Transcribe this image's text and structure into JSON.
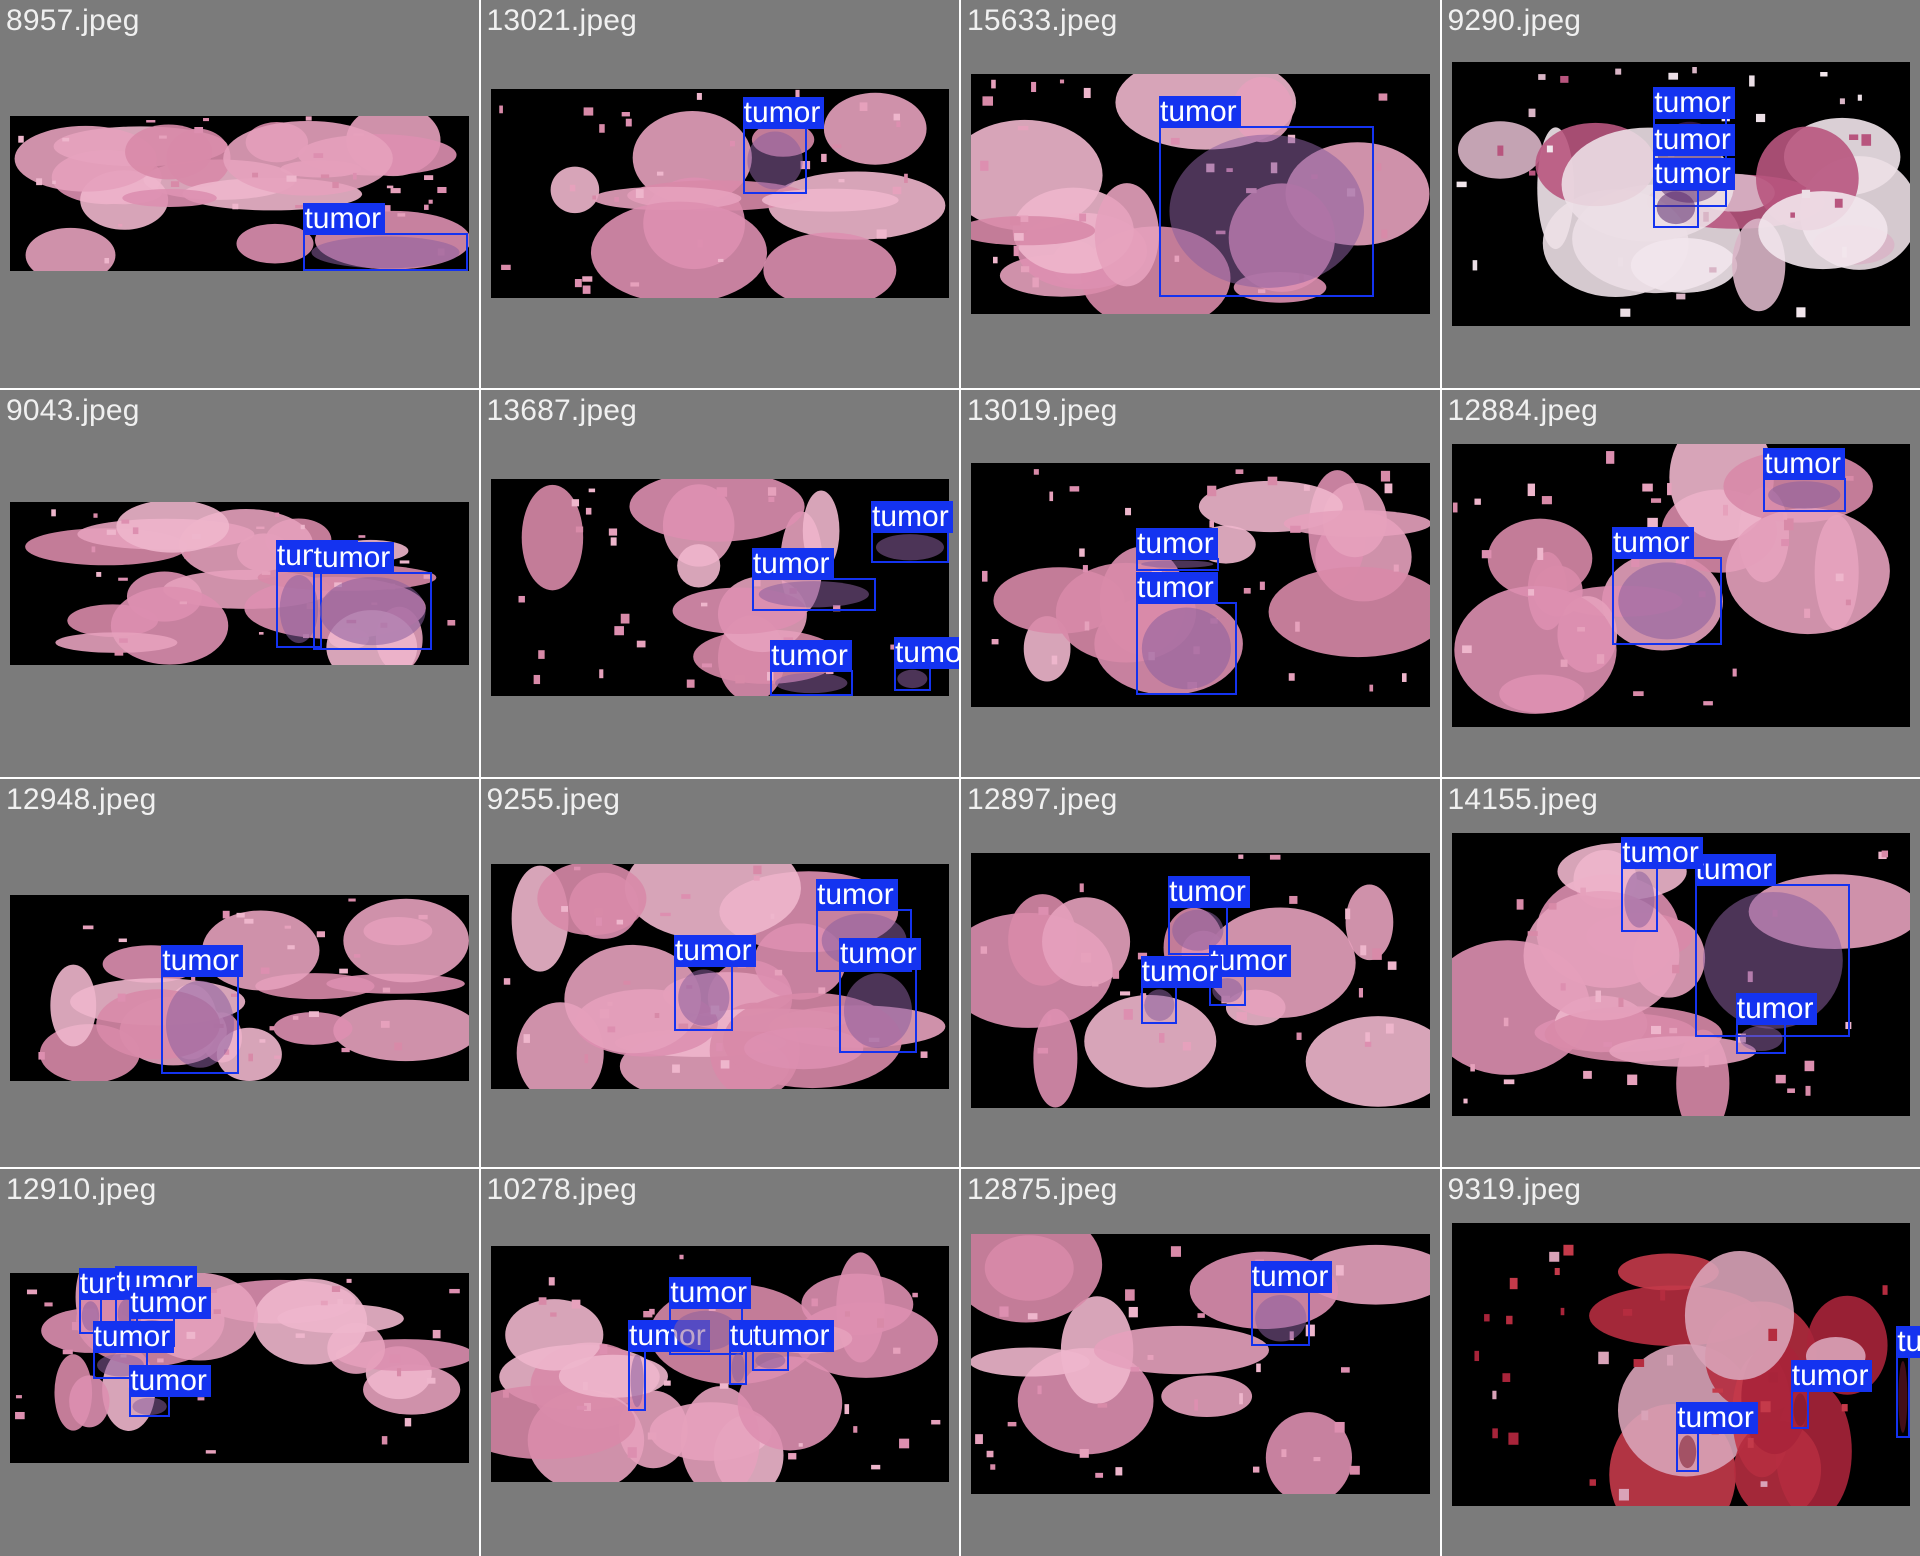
{
  "colors": {
    "background": "#7b7b7b",
    "slide": "#000000",
    "box": "#1433f0",
    "label_text": "#ffffff",
    "filename_text": "#f0f0f0"
  },
  "cells": [
    {
      "filename": "8957.jpeg",
      "tissue": "pink",
      "boxes": [
        {
          "label": "tumor"
        }
      ]
    },
    {
      "filename": "13021.jpeg",
      "tissue": "pink",
      "boxes": [
        {
          "label": "tumor"
        }
      ]
    },
    {
      "filename": "15633.jpeg",
      "tissue": "pink",
      "boxes": [
        {
          "label": "tumor"
        }
      ]
    },
    {
      "filename": "9290.jpeg",
      "tissue": "white",
      "boxes": [
        {
          "label": "tumor"
        },
        {
          "label": "tumor"
        },
        {
          "label": "tumor"
        }
      ]
    },
    {
      "filename": "9043.jpeg",
      "tissue": "pink",
      "boxes": [
        {
          "label": "tumor"
        },
        {
          "label": "tumor"
        }
      ]
    },
    {
      "filename": "13687.jpeg",
      "tissue": "pink",
      "boxes": [
        {
          "label": "tumor"
        },
        {
          "label": "tumor"
        },
        {
          "label": "tumor"
        },
        {
          "label": "tumor"
        }
      ]
    },
    {
      "filename": "13019.jpeg",
      "tissue": "pink",
      "boxes": [
        {
          "label": "tumor"
        },
        {
          "label": "tumor"
        }
      ]
    },
    {
      "filename": "12884.jpeg",
      "tissue": "pink",
      "boxes": [
        {
          "label": "tumor"
        },
        {
          "label": "tumor"
        }
      ]
    },
    {
      "filename": "12948.jpeg",
      "tissue": "pink",
      "boxes": [
        {
          "label": "tumor"
        }
      ]
    },
    {
      "filename": "9255.jpeg",
      "tissue": "pink",
      "boxes": [
        {
          "label": "tumor"
        },
        {
          "label": "tumor"
        },
        {
          "label": "tumor"
        }
      ]
    },
    {
      "filename": "12897.jpeg",
      "tissue": "pink",
      "boxes": [
        {
          "label": "tumor"
        },
        {
          "label": "tumor"
        },
        {
          "label": "tumor"
        }
      ]
    },
    {
      "filename": "14155.jpeg",
      "tissue": "pink",
      "boxes": [
        {
          "label": "tumor"
        },
        {
          "label": "tumor"
        },
        {
          "label": "tumor"
        }
      ]
    },
    {
      "filename": "12910.jpeg",
      "tissue": "pink",
      "boxes": [
        {
          "label": "tumor"
        },
        {
          "label": "tumor"
        },
        {
          "label": "tumor"
        },
        {
          "label": "tumor"
        },
        {
          "label": "tumor"
        }
      ]
    },
    {
      "filename": "10278.jpeg",
      "tissue": "pink",
      "boxes": [
        {
          "label": "tumor"
        },
        {
          "label": "tumor"
        },
        {
          "label": "tumor"
        },
        {
          "label": "tumor"
        }
      ]
    },
    {
      "filename": "12875.jpeg",
      "tissue": "pink",
      "boxes": [
        {
          "label": "tumor"
        }
      ]
    },
    {
      "filename": "9319.jpeg",
      "tissue": "red",
      "boxes": [
        {
          "label": "tumor"
        },
        {
          "label": "tumor"
        },
        {
          "label": "tumor"
        }
      ]
    }
  ]
}
